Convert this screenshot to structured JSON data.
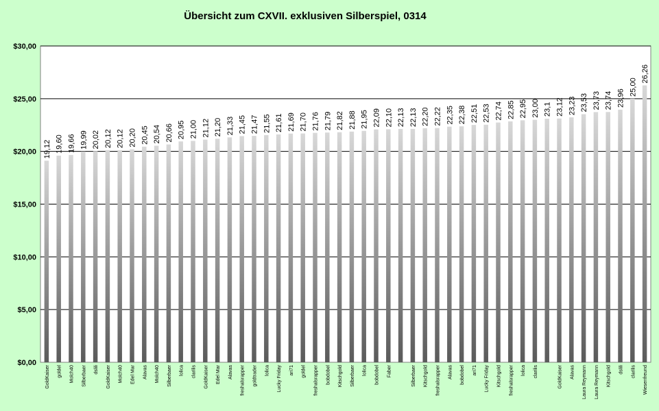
{
  "chart_data": {
    "type": "bar",
    "title": "Übersicht zum CXVII. exklusiven Silberspiel, 0314",
    "xlabel": "",
    "ylabel": "",
    "ylim": [
      0,
      30
    ],
    "yticks": [
      0,
      5,
      10,
      15,
      20,
      25,
      30
    ],
    "ytick_labels": [
      "$0,00",
      "$5,00",
      "$10,00",
      "$15,00",
      "$20,00",
      "$25,00",
      "$30,00"
    ],
    "grid": true,
    "legend": "none",
    "colors": {
      "background": "#ccffcc",
      "plot_area": "#ffffff",
      "bar_light": "#d8d8d8",
      "bar_dark": "#5a5a5a",
      "gridline": "#000000"
    },
    "categories": [
      "GoldKaiser",
      "goldel",
      "Molch40",
      "Silberbaer",
      "dslili",
      "GoldKaiser",
      "Molch40",
      "Edel Mar",
      "Alavas",
      "Molch40",
      "Silberbaer",
      "lolica",
      "clarilis",
      "GoldKaiser",
      "Edel Mar",
      "Alavas",
      "freshalsrapper",
      "goldtrader",
      "lolica",
      "Lucky Friday",
      "ari71",
      "goldel",
      "freshalsrapper",
      "bobdobel",
      "Kitschgold",
      "Silberbaer",
      "lolica",
      "bobdobel",
      "Faber",
      "",
      "Silberbaer",
      "Kitschgold",
      "freshalsrapper",
      "Alavas",
      "bobdobel",
      "ari71",
      "Lucky Friday",
      "Kitschgold",
      "freshalsrapper",
      "lolica",
      "clarilis",
      "",
      "GoldKaiser",
      "Alavas",
      "Laura Reymann",
      "Laura Reymann",
      "Kitschgold",
      "dslili",
      "clarilis",
      "Wiesenfreund"
    ],
    "values": [
      19.12,
      19.6,
      19.66,
      19.99,
      20.02,
      20.12,
      20.12,
      20.2,
      20.45,
      20.54,
      20.66,
      20.95,
      21.0,
      21.12,
      21.2,
      21.33,
      21.45,
      21.47,
      21.55,
      21.61,
      21.69,
      21.7,
      21.76,
      21.79,
      21.82,
      21.88,
      21.95,
      22.09,
      22.1,
      22.13,
      22.13,
      22.2,
      22.22,
      22.35,
      22.38,
      22.51,
      22.53,
      22.74,
      22.85,
      22.95,
      23.0,
      23.1,
      23.12,
      23.23,
      23.53,
      23.73,
      23.74,
      23.96,
      25.0,
      26.26
    ],
    "value_labels": [
      "19,12",
      "19,60",
      "19,66",
      "19,99",
      "20,02",
      "20,12",
      "20,12",
      "20,20",
      "20,45",
      "20,54",
      "20,66",
      "20,95",
      "21,00",
      "21,12",
      "21,20",
      "21,33",
      "21,45",
      "21,47",
      "21,55",
      "21,61",
      "21,69",
      "21,70",
      "21,76",
      "21,79",
      "21,82",
      "21,88",
      "21,95",
      "22,09",
      "22,10",
      "22,13",
      "22,13",
      "22,20",
      "22,22",
      "22,35",
      "22,38",
      "22,51",
      "22,53",
      "22,74",
      "22,85",
      "22,95",
      "23,00",
      "23,1",
      "23,12",
      "23,23",
      "23,53",
      "23,73",
      "23,74",
      "23,96",
      "25,00",
      "26,26"
    ]
  }
}
